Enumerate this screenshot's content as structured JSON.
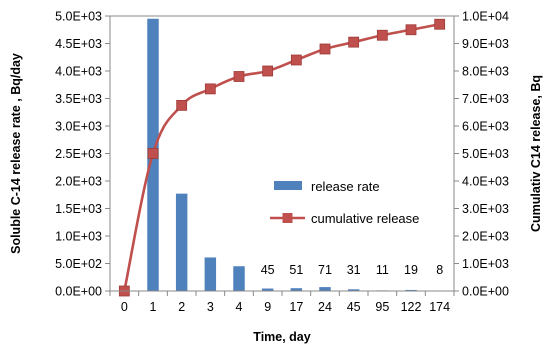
{
  "chart_data": {
    "type": "bar+line",
    "categories": [
      "0",
      "1",
      "2",
      "3",
      "4",
      "9",
      "17",
      "24",
      "45",
      "95",
      "122",
      "174"
    ],
    "series": [
      {
        "name": "release rate",
        "type": "bar",
        "axis": "left",
        "color": "#4f81bd",
        "values": [
          0,
          4950,
          1770,
          610,
          450,
          45,
          51,
          71,
          31,
          11,
          19,
          8
        ],
        "data_labels": [
          "",
          "",
          "",
          "",
          "",
          "45",
          "51",
          "71",
          "31",
          "11",
          "19",
          "8"
        ]
      },
      {
        "name": "cumulative release",
        "type": "line",
        "axis": "right",
        "color": "#c0504d",
        "values": [
          0,
          5000,
          6750,
          7350,
          7800,
          8000,
          8400,
          8800,
          9050,
          9300,
          9500,
          9700
        ]
      }
    ],
    "xlabel": "Time, day",
    "ylabel_left": "Soluble C-14 release rate , Bq/day",
    "ylabel_right": "Cumulativ C14 release, Bq",
    "ylim_left": [
      0,
      5000
    ],
    "ylim_right": [
      0,
      10000
    ],
    "yticks_left": [
      "0.0E+00",
      "5.0E+02",
      "1.0E+03",
      "1.5E+03",
      "2.0E+03",
      "2.5E+03",
      "3.0E+03",
      "3.5E+03",
      "4.0E+03",
      "4.5E+03",
      "5.0E+03"
    ],
    "yticks_right": [
      "0.0E+00",
      "1.0E+03",
      "2.0E+03",
      "3.0E+03",
      "4.0E+03",
      "5.0E+03",
      "6.0E+03",
      "7.0E+03",
      "8.0E+03",
      "9.0E+03",
      "1.0E+04"
    ],
    "grid": false,
    "legend_position": "center-right"
  }
}
